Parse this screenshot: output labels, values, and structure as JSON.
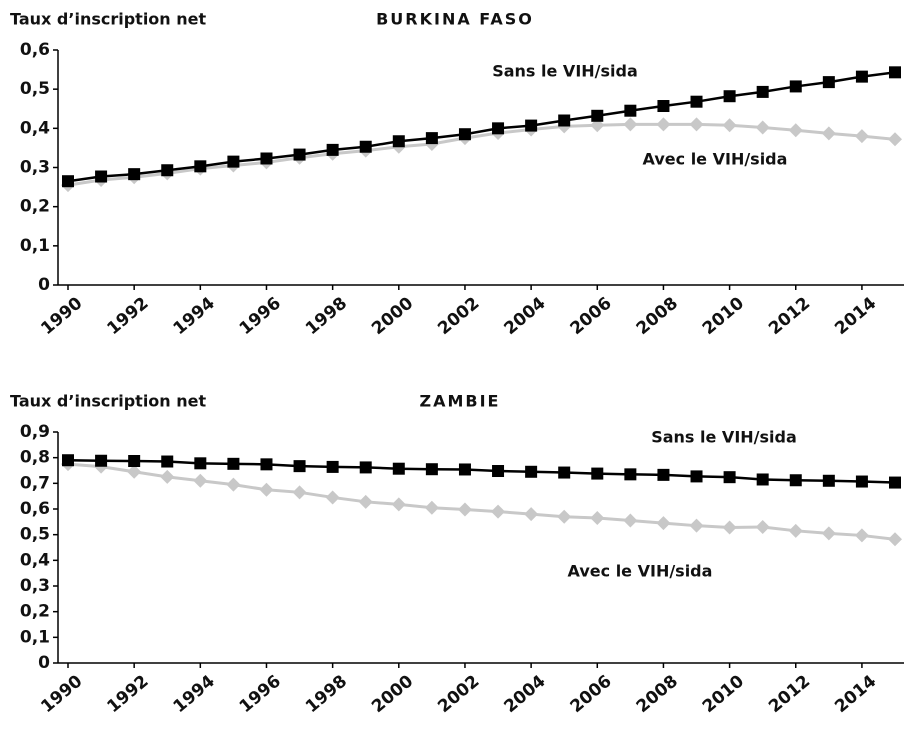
{
  "chart_data": [
    {
      "type": "line",
      "title": "BURKINA FASO",
      "y_label": "Taux d’inscription net",
      "x": [
        1990,
        1991,
        1992,
        1993,
        1994,
        1995,
        1996,
        1997,
        1998,
        1999,
        2000,
        2001,
        2002,
        2003,
        2004,
        2005,
        2006,
        2007,
        2008,
        2009,
        2010,
        2011,
        2012,
        2013,
        2014,
        2015
      ],
      "xlim": [
        1990,
        2015
      ],
      "xticks": [
        1990,
        1992,
        1994,
        1996,
        1998,
        2000,
        2002,
        2004,
        2006,
        2008,
        2010,
        2012,
        2014
      ],
      "ylim": [
        0,
        0.6
      ],
      "yticks": [
        0,
        {
          "value": 0.1,
          "label": "0,1"
        },
        {
          "value": 0.2,
          "label": "0,2"
        },
        {
          "value": 0.3,
          "label": "0,3"
        },
        {
          "value": 0.4,
          "label": "0,4"
        },
        {
          "value": 0.5,
          "label": "0,5"
        },
        {
          "value": 0.6,
          "label": "0,6"
        }
      ],
      "series": [
        {
          "name": "Avec le VIH/sida",
          "color": "#c8c8c8",
          "marker": "diamond",
          "values": [
            0.255,
            0.268,
            0.275,
            0.285,
            0.297,
            0.305,
            0.313,
            0.325,
            0.335,
            0.343,
            0.353,
            0.36,
            0.375,
            0.388,
            0.397,
            0.405,
            0.408,
            0.41,
            0.41,
            0.41,
            0.408,
            0.402,
            0.395,
            0.387,
            0.38,
            0.372
          ]
        },
        {
          "name": "Sans le VIH/sida",
          "color": "#000000",
          "marker": "square",
          "values": [
            0.265,
            0.277,
            0.283,
            0.293,
            0.303,
            0.315,
            0.323,
            0.333,
            0.345,
            0.353,
            0.367,
            0.375,
            0.385,
            0.4,
            0.407,
            0.42,
            0.432,
            0.445,
            0.457,
            0.468,
            0.482,
            0.493,
            0.507,
            0.518,
            0.532,
            0.543
          ]
        }
      ]
    },
    {
      "type": "line",
      "title": "ZAMBIE",
      "y_label": "Taux d’inscription net",
      "x": [
        1990,
        1991,
        1992,
        1993,
        1994,
        1995,
        1996,
        1997,
        1998,
        1999,
        2000,
        2001,
        2002,
        2003,
        2004,
        2005,
        2006,
        2007,
        2008,
        2009,
        2010,
        2011,
        2012,
        2013,
        2014,
        2015
      ],
      "xlim": [
        1990,
        2015
      ],
      "xticks": [
        1990,
        1992,
        1994,
        1996,
        1998,
        2000,
        2002,
        2004,
        2006,
        2008,
        2010,
        2012,
        2014
      ],
      "ylim": [
        0,
        0.9
      ],
      "yticks": [
        0,
        {
          "value": 0.1,
          "label": "0,1"
        },
        {
          "value": 0.2,
          "label": "0,2"
        },
        {
          "value": 0.3,
          "label": "0,3"
        },
        {
          "value": 0.4,
          "label": "0,4"
        },
        {
          "value": 0.5,
          "label": "0,5"
        },
        {
          "value": 0.6,
          "label": "0,6"
        },
        {
          "value": 0.7,
          "label": "0,7"
        },
        {
          "value": 0.8,
          "label": "0,8"
        },
        {
          "value": 0.9,
          "label": "0,9"
        }
      ],
      "series": [
        {
          "name": "Avec le VIH/sida",
          "color": "#c8c8c8",
          "marker": "diamond",
          "values": [
            0.775,
            0.765,
            0.745,
            0.725,
            0.71,
            0.695,
            0.675,
            0.665,
            0.645,
            0.628,
            0.618,
            0.605,
            0.598,
            0.59,
            0.58,
            0.57,
            0.565,
            0.555,
            0.545,
            0.535,
            0.528,
            0.53,
            0.515,
            0.505,
            0.497,
            0.482
          ]
        },
        {
          "name": "Sans le VIH/sida",
          "color": "#000000",
          "marker": "square",
          "values": [
            0.79,
            0.788,
            0.787,
            0.785,
            0.778,
            0.776,
            0.774,
            0.767,
            0.764,
            0.762,
            0.757,
            0.755,
            0.754,
            0.748,
            0.745,
            0.742,
            0.738,
            0.735,
            0.733,
            0.727,
            0.724,
            0.715,
            0.712,
            0.71,
            0.707,
            0.703
          ]
        }
      ]
    }
  ]
}
